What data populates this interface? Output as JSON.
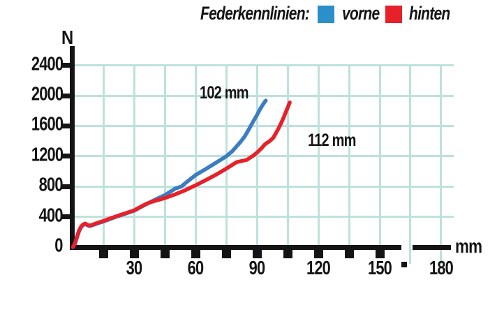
{
  "legend": {
    "title": "Federkennlinien:",
    "items": [
      {
        "label": "vorne",
        "color": "#2b8fca"
      },
      {
        "label": "hinten",
        "color": "#e6212a"
      }
    ]
  },
  "chart_data": {
    "type": "line",
    "title": "Federkennlinien: vorne / hinten",
    "xlabel": "mm",
    "ylabel": "N",
    "xlim": [
      0,
      180
    ],
    "ylim": [
      0,
      2400
    ],
    "grid": true,
    "grid_color": "#bee1dd",
    "x_grid_lines": [
      15,
      30,
      45,
      60,
      75,
      90,
      105,
      120,
      135,
      150,
      165,
      180
    ],
    "x_grid_below_axis": [
      165,
      180
    ],
    "x_tick_marks": [
      15,
      30,
      45,
      60,
      75,
      90,
      105,
      120,
      135,
      150
    ],
    "x_tick_labels": [
      30,
      60,
      90,
      120,
      150,
      180
    ],
    "y_grid_lines": [
      400,
      800,
      1200,
      1600,
      2000,
      2400
    ],
    "y_tick_marks": [
      400,
      800,
      1200,
      1600,
      2000,
      2400
    ],
    "y_tick_labels": [
      0,
      400,
      800,
      1200,
      1600,
      2000,
      2400
    ],
    "legend_position": "top",
    "series": [
      {
        "name": "vorne",
        "color": "#3c7cc0",
        "annotation": "102 mm",
        "points": [
          [
            0,
            0
          ],
          [
            1,
            45
          ],
          [
            2,
            130
          ],
          [
            3,
            210
          ],
          [
            4,
            262
          ],
          [
            5,
            292
          ],
          [
            6,
            303
          ],
          [
            7,
            289
          ],
          [
            8,
            277
          ],
          [
            9,
            283
          ],
          [
            10,
            293
          ],
          [
            12,
            313
          ],
          [
            15,
            339
          ],
          [
            18,
            369
          ],
          [
            21,
            399
          ],
          [
            24,
            426
          ],
          [
            27,
            453
          ],
          [
            30,
            481
          ],
          [
            33,
            526
          ],
          [
            36,
            569
          ],
          [
            40,
            624
          ],
          [
            45,
            687
          ],
          [
            50,
            772
          ],
          [
            53,
            800
          ],
          [
            55,
            845
          ],
          [
            60,
            952
          ],
          [
            65,
            1032
          ],
          [
            70,
            1115
          ],
          [
            75,
            1200
          ],
          [
            78,
            1268
          ],
          [
            80,
            1330
          ],
          [
            82,
            1392
          ],
          [
            84,
            1462
          ],
          [
            86,
            1556
          ],
          [
            88,
            1652
          ],
          [
            90,
            1745
          ],
          [
            91.5,
            1822
          ],
          [
            92.8,
            1878
          ],
          [
            93.8,
            1918
          ],
          [
            94.3,
            1935
          ]
        ]
      },
      {
        "name": "hinten",
        "color": "#e6212a",
        "annotation": "112 mm",
        "points": [
          [
            0,
            0
          ],
          [
            1,
            50
          ],
          [
            2,
            140
          ],
          [
            3,
            222
          ],
          [
            4,
            272
          ],
          [
            5,
            300
          ],
          [
            6,
            311
          ],
          [
            7,
            297
          ],
          [
            8,
            284
          ],
          [
            9,
            290
          ],
          [
            10,
            300
          ],
          [
            12,
            320
          ],
          [
            15,
            346
          ],
          [
            18,
            376
          ],
          [
            21,
            405
          ],
          [
            24,
            432
          ],
          [
            27,
            459
          ],
          [
            30,
            487
          ],
          [
            33,
            531
          ],
          [
            36,
            573
          ],
          [
            40,
            610
          ],
          [
            45,
            648
          ],
          [
            50,
            697
          ],
          [
            55,
            752
          ],
          [
            60,
            817
          ],
          [
            65,
            886
          ],
          [
            70,
            957
          ],
          [
            75,
            1037
          ],
          [
            80,
            1122
          ],
          [
            85,
            1152
          ],
          [
            88,
            1205
          ],
          [
            90,
            1248
          ],
          [
            92,
            1300
          ],
          [
            94,
            1360
          ],
          [
            96,
            1395
          ],
          [
            98,
            1445
          ],
          [
            100,
            1540
          ],
          [
            101.5,
            1620
          ],
          [
            103,
            1710
          ],
          [
            104.2,
            1790
          ],
          [
            105.2,
            1855
          ],
          [
            106,
            1910
          ]
        ]
      }
    ],
    "annotations": [
      {
        "text": "102 mm",
        "mm": 62,
        "n": 2170
      },
      {
        "text": "112 mm",
        "mm": 114.7,
        "n": 1535
      }
    ]
  }
}
